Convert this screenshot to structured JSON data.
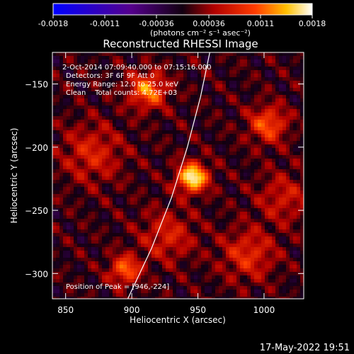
{
  "colorbar": {
    "ticks": [
      "-0.0018",
      "-0.0011",
      "-0.00036",
      "0.00036",
      "0.0011",
      "0.0018"
    ],
    "unit_label": "(photons cm⁻² s⁻¹ asec⁻²)",
    "range": [
      -0.0018,
      0.0018
    ],
    "colormap": "blue-purple-red-yellow-white"
  },
  "header": {
    "title": "Reconstructed RHESSI Image"
  },
  "annotations": {
    "time_range": "2-Oct-2014 07:09:40.000 to 07:15:16.000",
    "detectors": "Detectors: 3F 6F 9F Att 0",
    "energy_range": "Energy Range: 12.0 to 25.0 keV",
    "method": "Clean    Total counts: 4.72E+03",
    "peak": "Position of Peak = [946,-224]"
  },
  "footer": {
    "timestamp": "17-May-2022 19:51"
  },
  "chart_data": {
    "type": "heatmap",
    "title": "Reconstructed RHESSI Image",
    "xlabel": "Heliocentric X (arcsec)",
    "ylabel": "Heliocentric Y (arcsec)",
    "xlim": [
      840,
      1030
    ],
    "ylim": [
      -320,
      -125
    ],
    "x_ticks": [
      850,
      900,
      950,
      1000
    ],
    "y_ticks": [
      -150,
      -200,
      -250,
      -300
    ],
    "x_tick_labels": [
      "850",
      "900",
      "950",
      "1000"
    ],
    "y_tick_labels": [
      "−150",
      "−200",
      "−250",
      "−300"
    ],
    "peak": {
      "x": 946,
      "y": -224
    },
    "sources": [
      {
        "x": 946,
        "y": -224,
        "intensity": 1.0,
        "sigma": 8
      },
      {
        "x": 912,
        "y": -155,
        "intensity": 0.65,
        "sigma": 10
      },
      {
        "x": 1003,
        "y": -182,
        "intensity": 0.55,
        "sigma": 10
      },
      {
        "x": 895,
        "y": -297,
        "intensity": 0.6,
        "sigma": 8
      },
      {
        "x": 927,
        "y": -270,
        "intensity": 0.35,
        "sigma": 14
      },
      {
        "x": 988,
        "y": -285,
        "intensity": 0.4,
        "sigma": 14
      },
      {
        "x": 870,
        "y": -205,
        "intensity": 0.35,
        "sigma": 16
      },
      {
        "x": 1015,
        "y": -240,
        "intensity": 0.3,
        "sigma": 14
      }
    ],
    "limb_curve": [
      {
        "x": 897,
        "y": -320
      },
      {
        "x": 915,
        "y": -280
      },
      {
        "x": 930,
        "y": -240
      },
      {
        "x": 942,
        "y": -200
      },
      {
        "x": 952,
        "y": -160
      },
      {
        "x": 959,
        "y": -125
      }
    ]
  }
}
